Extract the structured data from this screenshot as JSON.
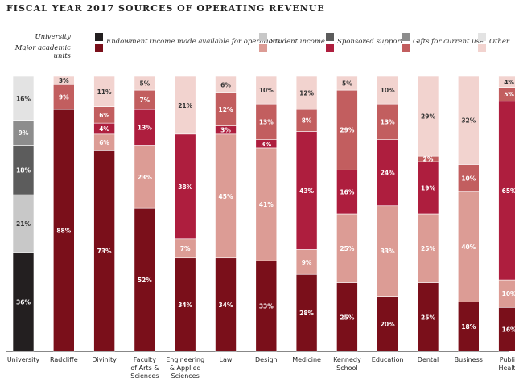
{
  "chart_data": {
    "type": "bar",
    "stacked": true,
    "title": "FISCAL YEAR 2017 SOURCES OF OPERATING REVENUE",
    "xlabel": "",
    "ylabel": "",
    "ylim": [
      0,
      100
    ],
    "legend_row_labels": [
      "University",
      "Major academic units"
    ],
    "categories": [
      "University",
      "Radcliffe",
      "Divinity",
      "Faculty of Arts & Sciences",
      "Engineering & Applied Sciences",
      "Law",
      "Design",
      "Medicine",
      "Kennedy School",
      "Education",
      "Dental",
      "Business",
      "Public Health"
    ],
    "series": [
      {
        "name": "Endowment income made available for operations",
        "colors": [
          "#231f20",
          "#7a0f1a"
        ],
        "values": [
          36,
          88,
          73,
          52,
          34,
          34,
          33,
          28,
          25,
          20,
          25,
          18,
          16
        ],
        "labels": [
          "36%",
          "88%",
          "73%",
          "52%",
          "34%",
          "34%",
          "33%",
          "28%",
          "25%",
          "20%",
          "25%",
          "18%",
          "16%"
        ]
      },
      {
        "name": "Student income",
        "colors": [
          "#c8c8c8",
          "#dc9c95"
        ],
        "values": [
          21,
          0,
          6,
          23,
          7,
          45,
          41,
          9,
          25,
          33,
          25,
          40,
          10
        ],
        "labels": [
          "21%",
          "",
          "6%",
          "23%",
          "7%",
          "45%",
          "41%",
          "9%",
          "25%",
          "33%",
          "25%",
          "40%",
          "10%"
        ]
      },
      {
        "name": "Sponsored support",
        "colors": [
          "#5c5c5c",
          "#ae1e3e"
        ],
        "values": [
          18,
          0,
          4,
          13,
          38,
          3,
          3,
          43,
          16,
          24,
          19,
          0,
          65
        ],
        "labels": [
          "18%",
          "",
          "4%",
          "13%",
          "38%",
          "3%",
          "3%",
          "43%",
          "16%",
          "24%",
          "19%",
          "",
          "65%"
        ]
      },
      {
        "name": "Gifts for current use",
        "colors": [
          "#8d8d8d",
          "#c25e5f"
        ],
        "values": [
          9,
          9,
          6,
          7,
          0,
          12,
          13,
          8,
          29,
          13,
          2,
          10,
          5
        ],
        "labels": [
          "9%",
          "9%",
          "6%",
          "7%",
          "",
          "12%",
          "13%",
          "8%",
          "29%",
          "13%",
          "2%",
          "10%",
          "5%"
        ]
      },
      {
        "name": "Other",
        "colors": [
          "#e3e3e3",
          "#f2d3cf"
        ],
        "values": [
          16,
          3,
          11,
          5,
          21,
          6,
          10,
          12,
          5,
          10,
          29,
          32,
          4
        ],
        "labels": [
          "16%",
          "3%",
          "11%",
          "5%",
          "21%",
          "6%",
          "10%",
          "12%",
          "5%",
          "10%",
          "29%",
          "32%",
          "4%"
        ]
      }
    ]
  }
}
